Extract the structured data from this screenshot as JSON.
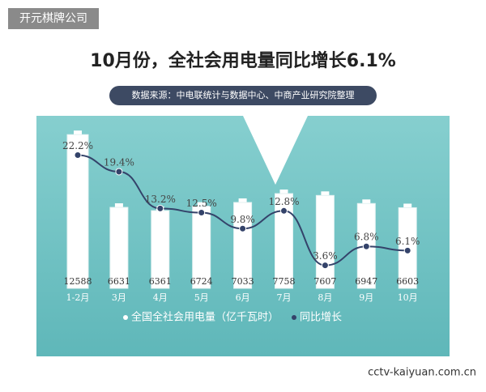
{
  "watermark_top": "开元棋牌公司",
  "watermark_bottom": "cctv-kaiyuan.com.cn",
  "chart_data": {
    "type": "bar",
    "title": "10月份，全社会用电量同比增长6.1%",
    "subtitle": "数据来源：中电联统计与数据中心、中商产业研究院整理",
    "categories": [
      "1-2月",
      "3月",
      "4月",
      "5月",
      "6月",
      "7月",
      "8月",
      "9月",
      "10月"
    ],
    "series": [
      {
        "name": "全国全社会用电量（亿千瓦时）",
        "color": "#ffffff",
        "values": [
          12588,
          6631,
          6361,
          6724,
          7033,
          7758,
          7607,
          6947,
          6603
        ]
      },
      {
        "name": "同比增长",
        "type": "line",
        "axis": "y2",
        "color": "#34436a",
        "values": [
          22.2,
          19.4,
          13.2,
          12.5,
          9.8,
          12.8,
          3.6,
          6.8,
          6.1
        ],
        "value_labels": [
          "22.2%",
          "19.4%",
          "13.2%",
          "12.5%",
          "9.8%",
          "12.8%",
          "3.6%",
          "6.8%",
          "6.1%"
        ]
      }
    ],
    "ylim": [
      0,
      13000
    ],
    "y2lim": [
      0,
      25
    ]
  }
}
